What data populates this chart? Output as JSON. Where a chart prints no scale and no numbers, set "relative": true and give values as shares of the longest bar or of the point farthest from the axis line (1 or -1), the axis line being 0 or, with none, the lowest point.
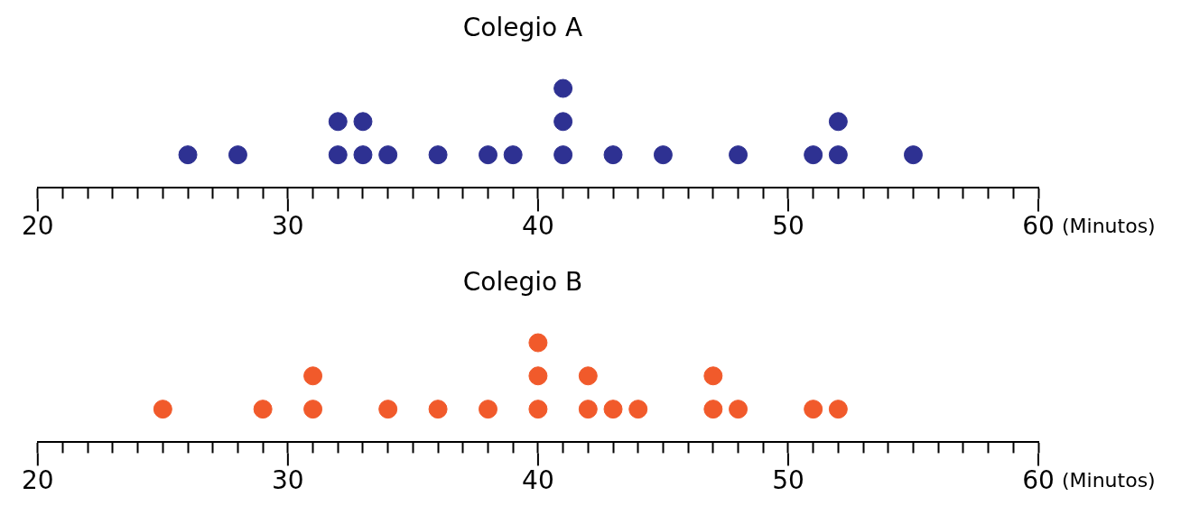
{
  "chart_data": [
    {
      "type": "scatter",
      "title": "Colegio A",
      "xlabel": "(Minutos)",
      "xlim": [
        20,
        60
      ],
      "relative": true,
      "tick_labels": "x",
      "grid": false,
      "legend": false,
      "marker": "circle",
      "xticks": [
        20,
        {
          "value": 21,
          "label": null
        },
        {
          "value": 22,
          "label": null
        },
        {
          "value": 23,
          "label": null
        },
        {
          "value": 24,
          "label": null
        },
        {
          "value": 25,
          "label": null
        },
        {
          "value": 26,
          "label": null
        },
        {
          "value": 27,
          "label": null
        },
        {
          "value": 28,
          "label": null
        },
        {
          "value": 29,
          "label": null
        },
        30,
        {
          "value": 31,
          "label": null
        },
        {
          "value": 32,
          "label": null
        },
        {
          "value": 33,
          "label": null
        },
        {
          "value": 34,
          "label": null
        },
        {
          "value": 35,
          "label": null
        },
        {
          "value": 36,
          "label": null
        },
        {
          "value": 37,
          "label": null
        },
        {
          "value": 38,
          "label": null
        },
        {
          "value": 39,
          "label": null
        },
        40,
        {
          "value": 41,
          "label": null
        },
        {
          "value": 42,
          "label": null
        },
        {
          "value": 43,
          "label": null
        },
        {
          "value": 44,
          "label": null
        },
        {
          "value": 45,
          "label": null
        },
        {
          "value": 46,
          "label": null
        },
        {
          "value": 47,
          "label": null
        },
        {
          "value": 48,
          "label": null
        },
        {
          "value": 49,
          "label": null
        },
        50,
        {
          "value": 51,
          "label": null
        },
        {
          "value": 52,
          "label": null
        },
        {
          "value": 53,
          "label": null
        },
        {
          "value": 54,
          "label": null
        },
        {
          "value": 55,
          "label": null
        },
        {
          "value": 56,
          "label": null
        },
        {
          "value": 57,
          "label": null
        },
        {
          "value": 58,
          "label": null
        },
        {
          "value": 59,
          "label": null
        },
        60
      ],
      "series": [
        {
          "color": "#2e3192",
          "x": [
            26,
            28,
            32,
            32,
            33,
            33,
            34,
            36,
            38,
            39,
            41,
            41,
            41,
            43,
            45,
            48,
            51,
            52,
            52,
            55
          ],
          "values": [
            0.333,
            0.333,
            0.333,
            0.667,
            0.333,
            0.667,
            0.333,
            0.333,
            0.333,
            0.333,
            0.333,
            0.667,
            1,
            0.333,
            0.333,
            0.333,
            0.333,
            0.333,
            0.667,
            0.333
          ]
        }
      ]
    },
    {
      "type": "scatter",
      "title": "Colegio B",
      "xlabel": "(Minutos)",
      "xlim": [
        20,
        60
      ],
      "relative": true,
      "tick_labels": "x",
      "grid": false,
      "legend": false,
      "marker": "circle",
      "xticks": [
        20,
        {
          "value": 21,
          "label": null
        },
        {
          "value": 22,
          "label": null
        },
        {
          "value": 23,
          "label": null
        },
        {
          "value": 24,
          "label": null
        },
        {
          "value": 25,
          "label": null
        },
        {
          "value": 26,
          "label": null
        },
        {
          "value": 27,
          "label": null
        },
        {
          "value": 28,
          "label": null
        },
        {
          "value": 29,
          "label": null
        },
        30,
        {
          "value": 31,
          "label": null
        },
        {
          "value": 32,
          "label": null
        },
        {
          "value": 33,
          "label": null
        },
        {
          "value": 34,
          "label": null
        },
        {
          "value": 35,
          "label": null
        },
        {
          "value": 36,
          "label": null
        },
        {
          "value": 37,
          "label": null
        },
        {
          "value": 38,
          "label": null
        },
        {
          "value": 39,
          "label": null
        },
        40,
        {
          "value": 41,
          "label": null
        },
        {
          "value": 42,
          "label": null
        },
        {
          "value": 43,
          "label": null
        },
        {
          "value": 44,
          "label": null
        },
        {
          "value": 45,
          "label": null
        },
        {
          "value": 46,
          "label": null
        },
        {
          "value": 47,
          "label": null
        },
        {
          "value": 48,
          "label": null
        },
        {
          "value": 49,
          "label": null
        },
        50,
        {
          "value": 51,
          "label": null
        },
        {
          "value": 52,
          "label": null
        },
        {
          "value": 53,
          "label": null
        },
        {
          "value": 54,
          "label": null
        },
        {
          "value": 55,
          "label": null
        },
        {
          "value": 56,
          "label": null
        },
        {
          "value": 57,
          "label": null
        },
        {
          "value": 58,
          "label": null
        },
        {
          "value": 59,
          "label": null
        },
        60
      ],
      "series": [
        {
          "color": "#f15a2b",
          "x": [
            25,
            29,
            31,
            31,
            34,
            36,
            38,
            40,
            40,
            40,
            42,
            42,
            43,
            44,
            47,
            47,
            48,
            51,
            52
          ],
          "values": [
            0.333,
            0.333,
            0.333,
            0.667,
            0.333,
            0.333,
            0.333,
            0.333,
            0.667,
            1,
            0.333,
            0.667,
            0.333,
            0.333,
            0.333,
            0.667,
            0.333,
            0.333,
            0.333
          ]
        }
      ]
    }
  ]
}
